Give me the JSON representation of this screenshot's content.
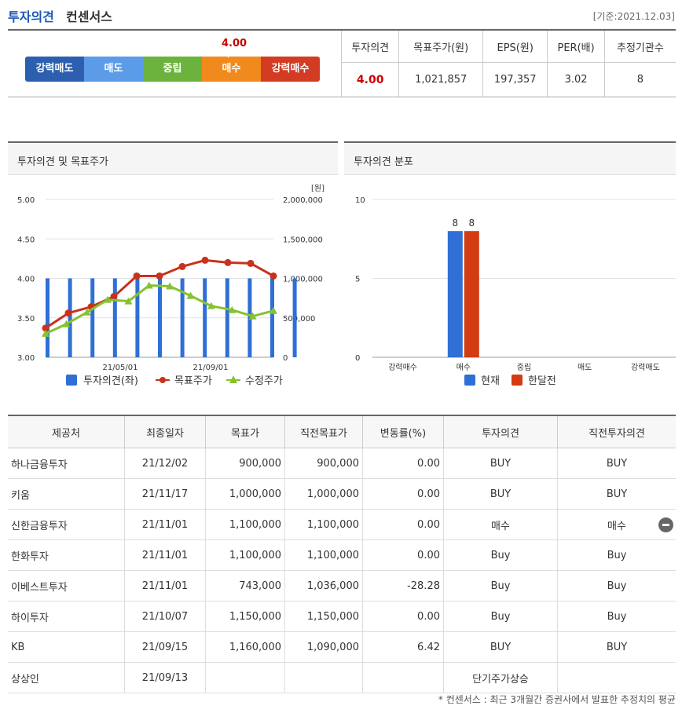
{
  "header": {
    "title_main": "투자의견",
    "title_sub": "컨센서스",
    "base_date": "[기준:2021.12.03]"
  },
  "scale": {
    "value": "4.00",
    "items": [
      {
        "label": "강력매도",
        "color": "#2d5fb0"
      },
      {
        "label": "매도",
        "color": "#5b9be8"
      },
      {
        "label": "중립",
        "color": "#6cb33e"
      },
      {
        "label": "매수",
        "color": "#f08a1c"
      },
      {
        "label": "강력매수",
        "color": "#d33b23"
      }
    ]
  },
  "summary": {
    "headers": [
      "투자의견",
      "목표주가(원)",
      "EPS(원)",
      "PER(배)",
      "추정기관수"
    ],
    "values": [
      "4.00",
      "1,021,857",
      "197,357",
      "3.02",
      "8"
    ]
  },
  "panels": {
    "left_title": "투자의견 및 목표주가",
    "right_title": "투자의견 분포"
  },
  "chart_data": [
    {
      "type": "line",
      "title": "투자의견 및 목표주가",
      "y_left": {
        "ticks": [
          "5.00",
          "4.50",
          "4.00",
          "3.50",
          "3.00"
        ],
        "range": [
          3.0,
          5.0
        ]
      },
      "y_right": {
        "unit": "[원]",
        "ticks": [
          "2,000,000",
          "1,500,000",
          "1,000,000",
          "500,000",
          "0"
        ],
        "range": [
          0,
          2000000
        ]
      },
      "x_ticks": [
        "21/05/01",
        "21/09/01"
      ],
      "series": [
        {
          "name": "투자의견(좌)",
          "kind": "bar",
          "color": "#2f6fd6",
          "values": [
            4.0,
            4.0,
            4.0,
            4.0,
            4.0,
            4.0,
            4.0,
            4.0,
            4.0,
            4.0,
            4.0,
            4.0
          ]
        },
        {
          "name": "목표주가",
          "kind": "line",
          "color": "#c8321c",
          "values": [
            370000,
            560000,
            640000,
            770000,
            1030000,
            1030000,
            1150000,
            1230000,
            1200000,
            1190000,
            1030000
          ]
        },
        {
          "name": "수정주가",
          "kind": "line",
          "color": "#86c232",
          "values": [
            300000,
            420000,
            570000,
            730000,
            710000,
            910000,
            900000,
            780000,
            650000,
            600000,
            520000,
            590000
          ]
        }
      ]
    },
    {
      "type": "bar",
      "title": "투자의견 분포",
      "categories": [
        "강력매수",
        "매수",
        "중립",
        "매도",
        "강력매도"
      ],
      "y_ticks": [
        "10",
        "5",
        "0"
      ],
      "ylim": [
        0,
        10
      ],
      "series": [
        {
          "name": "현재",
          "color": "#2f6fd6",
          "values": [
            0,
            8,
            0,
            0,
            0
          ]
        },
        {
          "name": "한달전",
          "color": "#d33b10",
          "values": [
            0,
            8,
            0,
            0,
            0
          ]
        }
      ]
    }
  ],
  "detail": {
    "headers": [
      "제공처",
      "최종일자",
      "목표가",
      "직전목표가",
      "변동률(%)",
      "투자의견",
      "직전투자의견"
    ],
    "rows": [
      [
        "하나금융투자",
        "21/12/02",
        "900,000",
        "900,000",
        "0.00",
        "BUY",
        "BUY"
      ],
      [
        "키움",
        "21/11/17",
        "1,000,000",
        "1,000,000",
        "0.00",
        "BUY",
        "BUY"
      ],
      [
        "신한금융투자",
        "21/11/01",
        "1,100,000",
        "1,100,000",
        "0.00",
        "매수",
        "매수"
      ],
      [
        "한화투자",
        "21/11/01",
        "1,100,000",
        "1,100,000",
        "0.00",
        "Buy",
        "Buy"
      ],
      [
        "이베스트투자",
        "21/11/01",
        "743,000",
        "1,036,000",
        "-28.28",
        "Buy",
        "Buy"
      ],
      [
        "하이투자",
        "21/10/07",
        "1,150,000",
        "1,150,000",
        "0.00",
        "Buy",
        "Buy"
      ],
      [
        "KB",
        "21/09/15",
        "1,160,000",
        "1,090,000",
        "6.42",
        "BUY",
        "BUY"
      ],
      [
        "상상인",
        "21/09/13",
        "",
        "",
        "",
        "단기주가상승",
        ""
      ]
    ]
  },
  "footnote": "* 컨센서스 : 최근 3개월간 증권사에서 발표한 추정치의 평균"
}
